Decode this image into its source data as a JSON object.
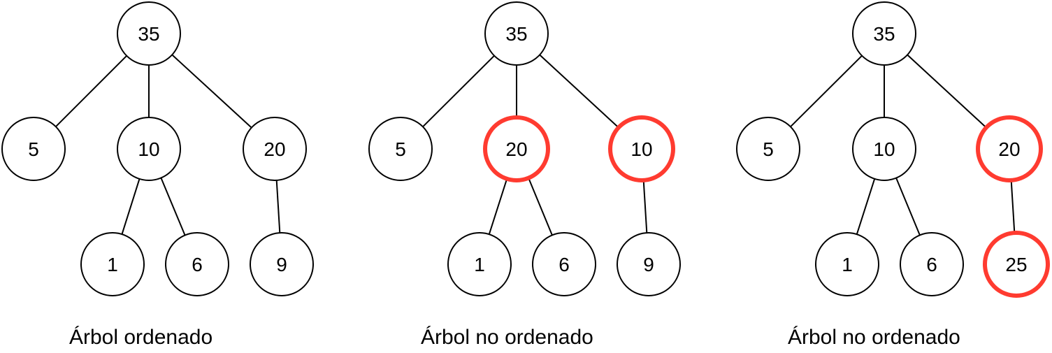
{
  "colors": {
    "normal_stroke": "#000000",
    "highlight_stroke": "#ff3b30",
    "background": "#ffffff"
  },
  "trees": [
    {
      "caption": "Árbol ordenado",
      "nodes": [
        {
          "id": "root",
          "label": "35",
          "highlight": false
        },
        {
          "id": "left",
          "label": "5",
          "highlight": false
        },
        {
          "id": "mid",
          "label": "10",
          "highlight": false
        },
        {
          "id": "right",
          "label": "20",
          "highlight": false
        },
        {
          "id": "mid-left",
          "label": "1",
          "highlight": false
        },
        {
          "id": "mid-right",
          "label": "6",
          "highlight": false
        },
        {
          "id": "right-child",
          "label": "9",
          "highlight": false
        }
      ]
    },
    {
      "caption": "Árbol no ordenado",
      "nodes": [
        {
          "id": "root",
          "label": "35",
          "highlight": false
        },
        {
          "id": "left",
          "label": "5",
          "highlight": false
        },
        {
          "id": "mid",
          "label": "20",
          "highlight": true
        },
        {
          "id": "right",
          "label": "10",
          "highlight": true
        },
        {
          "id": "mid-left",
          "label": "1",
          "highlight": false
        },
        {
          "id": "mid-right",
          "label": "6",
          "highlight": false
        },
        {
          "id": "right-child",
          "label": "9",
          "highlight": false
        }
      ]
    },
    {
      "caption": "Árbol no ordenado",
      "nodes": [
        {
          "id": "root",
          "label": "35",
          "highlight": false
        },
        {
          "id": "left",
          "label": "5",
          "highlight": false
        },
        {
          "id": "mid",
          "label": "10",
          "highlight": false
        },
        {
          "id": "right",
          "label": "20",
          "highlight": true
        },
        {
          "id": "mid-left",
          "label": "1",
          "highlight": false
        },
        {
          "id": "mid-right",
          "label": "6",
          "highlight": false
        },
        {
          "id": "right-child",
          "label": "25",
          "highlight": true
        }
      ]
    }
  ],
  "edges": [
    [
      "root",
      "left"
    ],
    [
      "root",
      "mid"
    ],
    [
      "root",
      "right"
    ],
    [
      "mid",
      "mid-left"
    ],
    [
      "mid",
      "mid-right"
    ],
    [
      "right",
      "right-child"
    ]
  ]
}
